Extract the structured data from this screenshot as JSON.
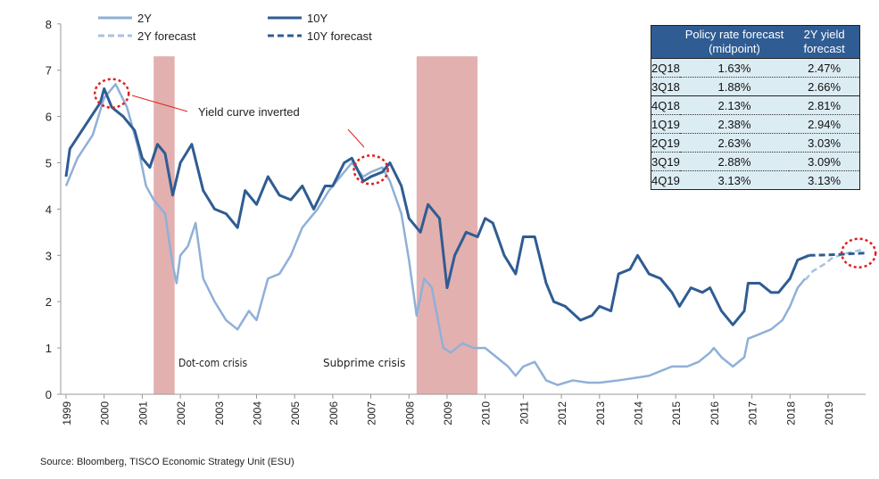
{
  "chart_data": {
    "type": "line",
    "title": "",
    "xlabel": "",
    "ylabel": "",
    "xlim": [
      1999,
      2020
    ],
    "ylim": [
      0,
      8
    ],
    "yticks": [
      0,
      1,
      2,
      3,
      4,
      5,
      6,
      7,
      8
    ],
    "xticks": [
      "1999",
      "2000",
      "2001",
      "2002",
      "2003",
      "2004",
      "2005",
      "2006",
      "2007",
      "2008",
      "2009",
      "2010",
      "2011",
      "2012",
      "2013",
      "2014",
      "2015",
      "2016",
      "2017",
      "2018",
      "2019"
    ],
    "legend_position": "top-left",
    "series": [
      {
        "name": "2Y",
        "color": "#8fb0d8",
        "dash": false,
        "x": [
          1999.0,
          1999.3,
          1999.7,
          2000.0,
          2000.3,
          2000.6,
          2000.9,
          2001.1,
          2001.3,
          2001.6,
          2001.8,
          2001.9,
          2002.0,
          2002.2,
          2002.4,
          2002.6,
          2002.9,
          2003.2,
          2003.5,
          2003.8,
          2004.0,
          2004.3,
          2004.6,
          2004.9,
          2005.2,
          2005.6,
          2005.9,
          2006.2,
          2006.5,
          2006.8,
          2007.0,
          2007.3,
          2007.5,
          2007.8,
          2008.0,
          2008.2,
          2008.4,
          2008.6,
          2008.9,
          2009.1,
          2009.4,
          2009.7,
          2010.0,
          2010.3,
          2010.6,
          2010.8,
          2011.0,
          2011.3,
          2011.6,
          2011.9,
          2012.3,
          2012.7,
          2013.0,
          2013.5,
          2013.9,
          2014.3,
          2014.6,
          2014.9,
          2015.3,
          2015.6,
          2015.9,
          2016.0,
          2016.2,
          2016.5,
          2016.8,
          2016.9,
          2017.2,
          2017.5,
          2017.8,
          2018.0,
          2018.2,
          2018.4
        ],
        "y": [
          4.5,
          5.1,
          5.6,
          6.4,
          6.7,
          6.2,
          5.3,
          4.5,
          4.2,
          3.9,
          2.8,
          2.4,
          3.0,
          3.2,
          3.7,
          2.5,
          2.0,
          1.6,
          1.4,
          1.8,
          1.6,
          2.5,
          2.6,
          3.0,
          3.6,
          4.0,
          4.4,
          4.7,
          5.0,
          4.7,
          4.8,
          4.9,
          4.6,
          3.9,
          2.9,
          1.7,
          2.5,
          2.3,
          1.0,
          0.9,
          1.1,
          1.0,
          1.0,
          0.8,
          0.6,
          0.4,
          0.6,
          0.7,
          0.3,
          0.2,
          0.3,
          0.25,
          0.25,
          0.3,
          0.35,
          0.4,
          0.5,
          0.6,
          0.6,
          0.7,
          0.9,
          1.0,
          0.8,
          0.6,
          0.8,
          1.2,
          1.3,
          1.4,
          1.6,
          1.9,
          2.3,
          2.5
        ]
      },
      {
        "name": "10Y",
        "color": "#2f5c93",
        "dash": false,
        "x": [
          1999.0,
          1999.1,
          1999.5,
          1999.9,
          2000.0,
          2000.2,
          2000.5,
          2000.8,
          2001.0,
          2001.2,
          2001.4,
          2001.6,
          2001.8,
          2002.0,
          2002.3,
          2002.6,
          2002.9,
          2003.2,
          2003.5,
          2003.7,
          2004.0,
          2004.3,
          2004.6,
          2004.9,
          2005.2,
          2005.5,
          2005.8,
          2006.0,
          2006.3,
          2006.5,
          2006.8,
          2007.0,
          2007.3,
          2007.5,
          2007.8,
          2008.0,
          2008.3,
          2008.5,
          2008.8,
          2009.0,
          2009.2,
          2009.5,
          2009.8,
          2010.0,
          2010.2,
          2010.5,
          2010.8,
          2011.0,
          2011.3,
          2011.6,
          2011.8,
          2012.1,
          2012.5,
          2012.8,
          2013.0,
          2013.3,
          2013.5,
          2013.8,
          2014.0,
          2014.3,
          2014.6,
          2014.9,
          2015.1,
          2015.4,
          2015.7,
          2015.9,
          2016.2,
          2016.5,
          2016.8,
          2016.9,
          2017.2,
          2017.5,
          2017.7,
          2018.0,
          2018.2,
          2018.5
        ],
        "y": [
          4.7,
          5.3,
          5.8,
          6.3,
          6.6,
          6.2,
          6.0,
          5.7,
          5.1,
          4.9,
          5.4,
          5.2,
          4.3,
          5.0,
          5.4,
          4.4,
          4.0,
          3.9,
          3.6,
          4.4,
          4.1,
          4.7,
          4.3,
          4.2,
          4.5,
          4.0,
          4.5,
          4.5,
          5.0,
          5.1,
          4.6,
          4.7,
          4.8,
          5.0,
          4.5,
          3.8,
          3.5,
          4.1,
          3.8,
          2.3,
          3.0,
          3.5,
          3.4,
          3.8,
          3.7,
          3.0,
          2.6,
          3.4,
          3.4,
          2.4,
          2.0,
          1.9,
          1.6,
          1.7,
          1.9,
          1.8,
          2.6,
          2.7,
          3.0,
          2.6,
          2.5,
          2.2,
          1.9,
          2.3,
          2.2,
          2.3,
          1.8,
          1.5,
          1.8,
          2.4,
          2.4,
          2.2,
          2.2,
          2.5,
          2.9,
          3.0
        ]
      },
      {
        "name": "2Y forecast",
        "color": "#a8c2e2",
        "dash": true,
        "x": [
          2018.4,
          2018.6,
          2018.9,
          2019.1,
          2019.4,
          2019.7,
          2019.95
        ],
        "y": [
          2.47,
          2.66,
          2.81,
          2.94,
          3.03,
          3.09,
          3.13
        ]
      },
      {
        "name": "10Y forecast",
        "color": "#2f5c93",
        "dash": true,
        "x": [
          2018.5,
          2019.0,
          2019.5,
          2019.95
        ],
        "y": [
          3.0,
          3.01,
          3.03,
          3.05
        ]
      }
    ],
    "recessions": [
      {
        "label": "Dot-com crisis",
        "start": 2001.3,
        "end": 2001.85
      },
      {
        "label": "Subprime crisis",
        "start": 2008.2,
        "end": 2009.8
      }
    ],
    "recession_color": "#e3b0b0",
    "annotation": {
      "text": "Yield curve inverted",
      "circles": [
        {
          "x": 2000.2,
          "y": 6.5
        },
        {
          "x": 2007.0,
          "y": 4.85
        },
        {
          "x": 2019.8,
          "y": 3.05
        }
      ]
    }
  },
  "table": {
    "headers": [
      "",
      "Policy rate forecast (midpoint)",
      "2Y yield forecast"
    ],
    "rows": [
      [
        "2Q18",
        "1.63%",
        "2.47%"
      ],
      [
        "3Q18",
        "1.88%",
        "2.66%"
      ],
      [
        "4Q18",
        "2.13%",
        "2.81%"
      ],
      [
        "1Q19",
        "2.38%",
        "2.94%"
      ],
      [
        "2Q19",
        "2.63%",
        "3.03%"
      ],
      [
        "3Q19",
        "2.88%",
        "3.09%"
      ],
      [
        "4Q19",
        "3.13%",
        "3.13%"
      ]
    ]
  },
  "source": "Source: Bloomberg, TISCO Economic Strategy Unit (ESU)"
}
